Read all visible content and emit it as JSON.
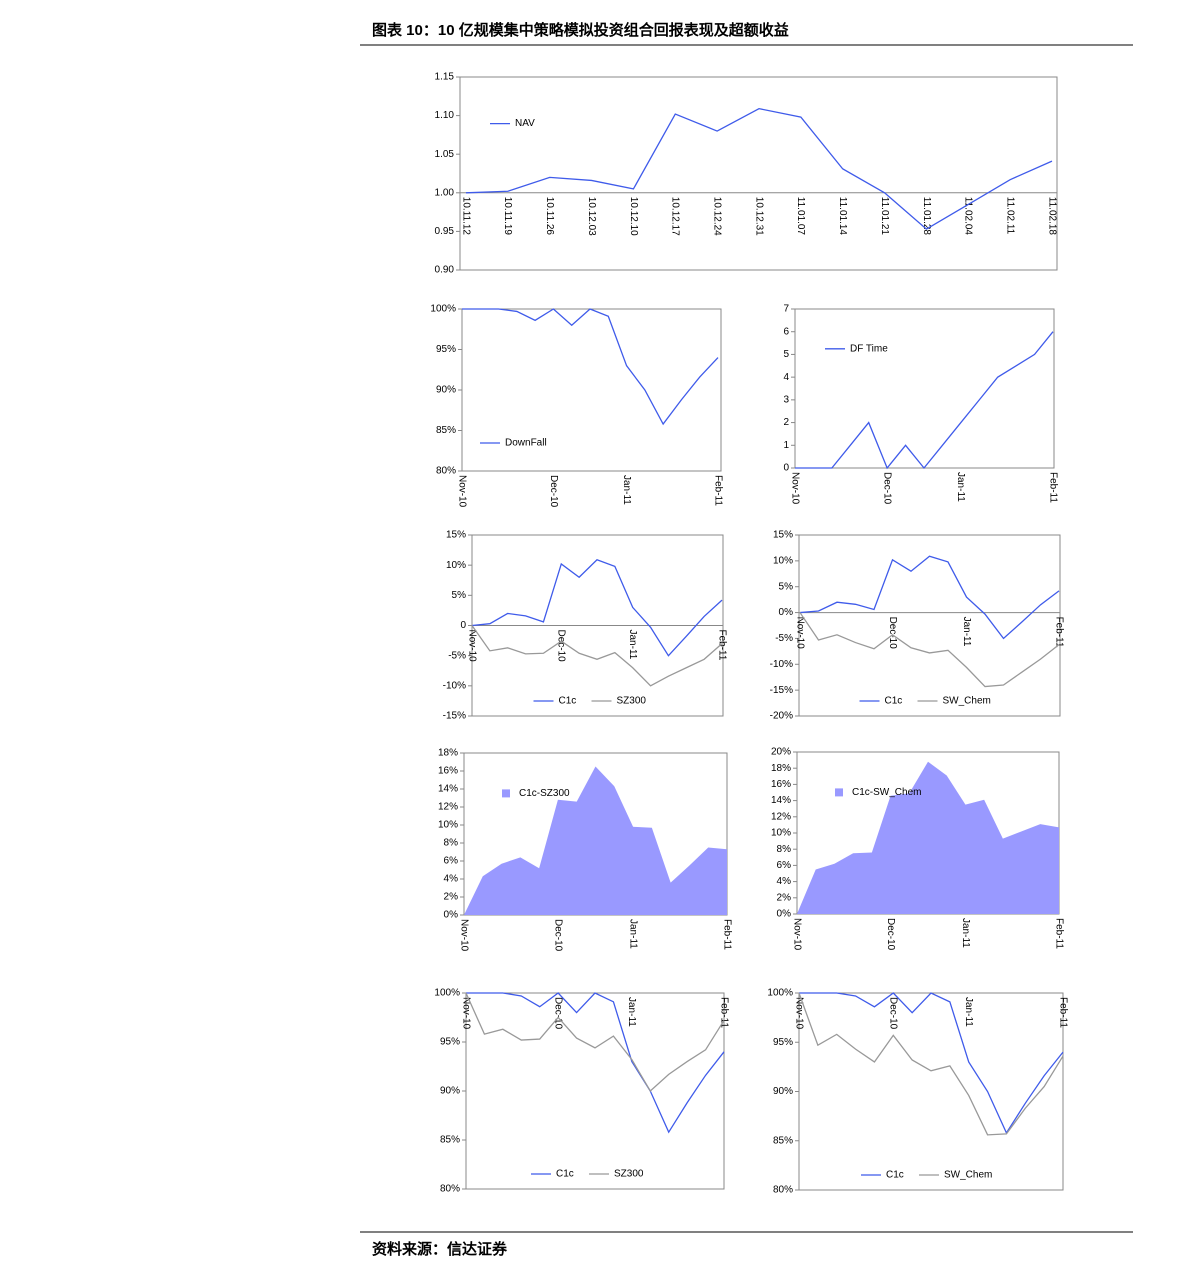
{
  "page": {
    "title": "图表 10：10 亿规模集中策略模拟投资组合回报表现及超额收益",
    "source": "资料来源：信达证券"
  },
  "chart_data": [
    {
      "type": "line",
      "categories": [
        "10.11.12",
        "10.11.19",
        "10.11.26",
        "10.12.03",
        "10.12.10",
        "10.12.17",
        "10.12.24",
        "10.12.31",
        "11.01.07",
        "11.01.14",
        "11.01.21",
        "11.01.28",
        "11.02.04",
        "11.02.11",
        "11.02.18"
      ],
      "series": [
        {
          "name": "NAV",
          "color": "#3f5bea",
          "values": [
            1.0,
            1.002,
            1.02,
            1.016,
            1.005,
            1.102,
            1.08,
            1.109,
            1.098,
            1.031,
            1.0,
            0.953,
            0.985,
            1.017,
            1.041
          ]
        }
      ],
      "ylim": [
        0.9,
        1.15
      ],
      "yticks": [
        {
          "value": 0.9,
          "label": "0.90"
        },
        0.95,
        {
          "value": 1.0,
          "label": "1.00"
        },
        1.05,
        {
          "value": 1.1,
          "label": "1.10"
        },
        1.15
      ],
      "x_axis_crosses": 1,
      "legend": "upper left"
    },
    {
      "type": "line",
      "categories": [
        "Nov-10",
        null,
        null,
        null,
        null,
        "Dec-10",
        null,
        null,
        null,
        "Jan-11",
        null,
        null,
        null,
        null,
        "Feb-11"
      ],
      "series": [
        {
          "name": "DownFall",
          "color": "#3f5bea",
          "values": [
            100,
            100,
            100,
            99.7,
            98.6,
            100,
            98,
            100,
            99.1,
            93,
            90,
            85.8,
            88.8,
            91.6,
            94
          ]
        }
      ],
      "ylim": [
        80,
        100
      ],
      "yticks": [
        {
          "value": 80,
          "label": "80%"
        },
        {
          "value": 85,
          "label": "85%"
        },
        {
          "value": 90,
          "label": "90%"
        },
        {
          "value": 95,
          "label": "95%"
        },
        {
          "value": 100,
          "label": "100%"
        }
      ],
      "x_axis_crosses": 80,
      "legend": "lower left"
    },
    {
      "type": "line",
      "categories": [
        "Nov-10",
        null,
        null,
        null,
        null,
        "Dec-10",
        null,
        null,
        null,
        "Jan-11",
        null,
        null,
        null,
        null,
        "Feb-11"
      ],
      "series": [
        {
          "name": "DF Time",
          "color": "#3f5bea",
          "values": [
            0,
            0,
            0,
            1,
            2,
            0,
            1,
            0,
            1,
            2,
            3,
            4,
            4.5,
            5,
            6
          ]
        }
      ],
      "ylim": [
        0,
        7
      ],
      "yticks": [
        0,
        1,
        2,
        3,
        4,
        5,
        6,
        7
      ],
      "x_axis_crosses": 0,
      "legend": "upper left"
    },
    {
      "type": "line",
      "categories": [
        "Nov-10",
        null,
        null,
        null,
        null,
        "Dec-10",
        null,
        null,
        null,
        "Jan-11",
        null,
        null,
        null,
        null,
        "Feb-11"
      ],
      "series": [
        {
          "name": "C1c",
          "color": "#3f5bea",
          "values": [
            0,
            0.3,
            2,
            1.6,
            0.6,
            10.2,
            8,
            10.9,
            9.8,
            3,
            -0.3,
            -5,
            -1.8,
            1.5,
            4.2
          ]
        },
        {
          "name": "SZ300",
          "color": "#999999",
          "values": [
            0,
            -4.2,
            -3.7,
            -4.7,
            -4.6,
            -2.6,
            -4.6,
            -5.6,
            -4.5,
            -7,
            -10,
            -8.4,
            -7,
            -5.6,
            -3
          ]
        }
      ],
      "ylim": [
        -15,
        15
      ],
      "yticks": [
        {
          "value": -15,
          "label": "-15%"
        },
        {
          "value": -10,
          "label": "-10%"
        },
        {
          "value": -5,
          "label": "-5%"
        },
        {
          "value": 0,
          "label": "0"
        },
        {
          "value": 5,
          "label": "5%"
        },
        {
          "value": 10,
          "label": "10%"
        },
        {
          "value": 15,
          "label": "15%"
        }
      ],
      "x_axis_crosses": 0,
      "legend": "lower center"
    },
    {
      "type": "line",
      "categories": [
        "Nov-10",
        null,
        null,
        null,
        null,
        "Dec-10",
        null,
        null,
        null,
        "Jan-11",
        null,
        null,
        null,
        null,
        "Feb-11"
      ],
      "series": [
        {
          "name": "C1c",
          "color": "#3f5bea",
          "values": [
            0,
            0.3,
            2,
            1.6,
            0.6,
            10.2,
            8,
            10.9,
            9.8,
            3,
            -0.3,
            -5,
            -1.8,
            1.5,
            4.2
          ]
        },
        {
          "name": "SW_Chem",
          "color": "#999999",
          "values": [
            0,
            -5.3,
            -4.3,
            -5.8,
            -7,
            -4.3,
            -6.8,
            -7.8,
            -7.3,
            -10.6,
            -14.3,
            -14,
            -11.5,
            -9,
            -6.2
          ]
        }
      ],
      "ylim": [
        -20,
        15
      ],
      "yticks": [
        {
          "value": -20,
          "label": "-20%"
        },
        {
          "value": -15,
          "label": "-15%"
        },
        {
          "value": -10,
          "label": "-10%"
        },
        {
          "value": -5,
          "label": "-5%"
        },
        {
          "value": 0,
          "label": "0%"
        },
        {
          "value": 5,
          "label": "5%"
        },
        {
          "value": 10,
          "label": "10%"
        },
        {
          "value": 15,
          "label": "15%"
        }
      ],
      "x_axis_crosses": 0,
      "legend": "lower center"
    },
    {
      "type": "area",
      "categories": [
        "Nov-10",
        null,
        null,
        null,
        null,
        "Dec-10",
        null,
        null,
        null,
        "Jan-11",
        null,
        null,
        null,
        null,
        "Feb-11"
      ],
      "series": [
        {
          "name": "C1c-SZ300",
          "color": "#9999ff",
          "values": [
            0,
            4.3,
            5.7,
            6.4,
            5.2,
            12.8,
            12.6,
            16.5,
            14.3,
            9.8,
            9.7,
            3.6,
            5.5,
            7.5,
            7.3
          ]
        }
      ],
      "ylim": [
        0,
        18
      ],
      "yticks": [
        {
          "value": 0,
          "label": "0%"
        },
        {
          "value": 2,
          "label": "2%"
        },
        {
          "value": 4,
          "label": "4%"
        },
        {
          "value": 6,
          "label": "6%"
        },
        {
          "value": 8,
          "label": "8%"
        },
        {
          "value": 10,
          "label": "10%"
        },
        {
          "value": 12,
          "label": "12%"
        },
        {
          "value": 14,
          "label": "14%"
        },
        {
          "value": 16,
          "label": "16%"
        },
        {
          "value": 18,
          "label": "18%"
        }
      ],
      "x_axis_crosses": 0,
      "legend": "upper left"
    },
    {
      "type": "area",
      "categories": [
        "Nov-10",
        null,
        null,
        null,
        null,
        "Dec-10",
        null,
        null,
        null,
        "Jan-11",
        null,
        null,
        null,
        null,
        "Feb-11"
      ],
      "series": [
        {
          "name": "C1c-SW_Chem",
          "color": "#9999ff",
          "values": [
            0,
            5.5,
            6.2,
            7.5,
            7.6,
            14.6,
            14.9,
            18.8,
            17.1,
            13.5,
            14.1,
            9.3,
            10.2,
            11.1,
            10.7
          ]
        }
      ],
      "ylim": [
        0,
        20
      ],
      "yticks": [
        {
          "value": 0,
          "label": "0%"
        },
        {
          "value": 2,
          "label": "2%"
        },
        {
          "value": 4,
          "label": "4%"
        },
        {
          "value": 6,
          "label": "6%"
        },
        {
          "value": 8,
          "label": "8%"
        },
        {
          "value": 10,
          "label": "10%"
        },
        {
          "value": 12,
          "label": "12%"
        },
        {
          "value": 14,
          "label": "14%"
        },
        {
          "value": 16,
          "label": "16%"
        },
        {
          "value": 18,
          "label": "18%"
        },
        {
          "value": 20,
          "label": "20%"
        }
      ],
      "x_axis_crosses": 0,
      "legend": "upper left"
    },
    {
      "type": "line",
      "categories": [
        "Nov-10",
        null,
        null,
        null,
        null,
        "Dec-10",
        null,
        null,
        null,
        "Jan-11",
        null,
        null,
        null,
        null,
        "Feb-11"
      ],
      "series": [
        {
          "name": "C1c",
          "color": "#3f5bea",
          "values": [
            100,
            100,
            100,
            99.7,
            98.6,
            100,
            98,
            100,
            99.1,
            93,
            90,
            85.8,
            88.8,
            91.6,
            94
          ]
        },
        {
          "name": "SZ300",
          "color": "#999999",
          "values": [
            100,
            95.8,
            96.3,
            95.2,
            95.3,
            97.5,
            95.4,
            94.4,
            95.6,
            93.2,
            90,
            91.7,
            93,
            94.2,
            97.2
          ]
        }
      ],
      "ylim": [
        80,
        100
      ],
      "yticks": [
        {
          "value": 80,
          "label": "80%"
        },
        {
          "value": 85,
          "label": "85%"
        },
        {
          "value": 90,
          "label": "90%"
        },
        {
          "value": 95,
          "label": "95%"
        },
        {
          "value": 100,
          "label": "100%"
        }
      ],
      "x_axis_crosses": 100,
      "legend": "lower center"
    },
    {
      "type": "line",
      "categories": [
        "Nov-10",
        null,
        null,
        null,
        null,
        "Dec-10",
        null,
        null,
        null,
        "Jan-11",
        null,
        null,
        null,
        null,
        "Feb-11"
      ],
      "series": [
        {
          "name": "C1c",
          "color": "#3f5bea",
          "values": [
            100,
            100,
            100,
            99.7,
            98.6,
            100,
            98,
            100,
            99.1,
            93,
            90,
            85.8,
            88.8,
            91.6,
            94
          ]
        },
        {
          "name": "SW_Chem",
          "color": "#999999",
          "values": [
            100,
            94.7,
            95.8,
            94.3,
            93,
            95.7,
            93.2,
            92.1,
            92.6,
            89.6,
            85.6,
            85.7,
            88.3,
            90.5,
            93.6
          ]
        }
      ],
      "ylim": [
        80,
        100
      ],
      "yticks": [
        {
          "value": 80,
          "label": "80%"
        },
        {
          "value": 85,
          "label": "85%"
        },
        {
          "value": 90,
          "label": "90%"
        },
        {
          "value": 95,
          "label": "95%"
        },
        {
          "value": 100,
          "label": "100%"
        }
      ],
      "x_axis_crosses": 100,
      "legend": "lower center"
    }
  ]
}
